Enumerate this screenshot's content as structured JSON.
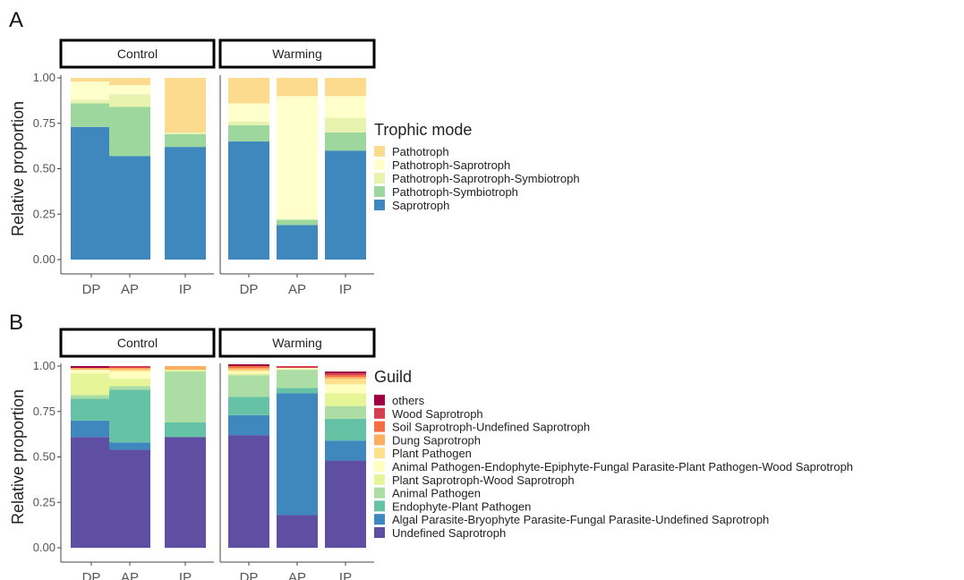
{
  "panels": [
    {
      "letter": "A",
      "facets": [
        "Control",
        "Warming"
      ],
      "legend_title": "Trophic mode",
      "chart_data": {
        "type": "bar",
        "stacked": true,
        "ylabel": "Relative proportion",
        "ylim": [
          0,
          1
        ],
        "yticks": [
          "0.00",
          "0.25",
          "0.50",
          "0.75",
          "1.00"
        ],
        "categories": [
          "DP",
          "AP",
          "IP"
        ],
        "facets": [
          "Control",
          "Warming"
        ],
        "series": [
          {
            "name": "Saprotroph",
            "color": "#3E88BD",
            "values": {
              "Control": [
                0.73,
                0.57,
                0.62
              ],
              "Warming": [
                0.65,
                0.19,
                0.6
              ]
            }
          },
          {
            "name": "Pathotroph-Symbiotroph",
            "color": "#9ED79E",
            "values": {
              "Control": [
                0.13,
                0.27,
                0.07
              ],
              "Warming": [
                0.09,
                0.03,
                0.1
              ]
            }
          },
          {
            "name": "Pathotroph-Saprotroph-Symbiotroph",
            "color": "#E8F3B0",
            "values": {
              "Control": [
                0.02,
                0.07,
                0.01
              ],
              "Warming": [
                0.02,
                0.0,
                0.08
              ]
            }
          },
          {
            "name": "Pathotroph-Saprotroph",
            "color": "#FFFFCB",
            "values": {
              "Control": [
                0.1,
                0.05,
                0.0
              ],
              "Warming": [
                0.1,
                0.68,
                0.12
              ]
            }
          },
          {
            "name": "Pathotroph",
            "color": "#FCDB8E",
            "values": {
              "Control": [
                0.02,
                0.04,
                0.3
              ],
              "Warming": [
                0.14,
                0.1,
                0.1
              ]
            }
          }
        ]
      }
    },
    {
      "letter": "B",
      "facets": [
        "Control",
        "Warming"
      ],
      "legend_title": "Guild",
      "chart_data": {
        "type": "bar",
        "stacked": true,
        "ylabel": "Relative proportion",
        "ylim": [
          0,
          1
        ],
        "yticks": [
          "0.00",
          "0.25",
          "0.50",
          "0.75",
          "1.00"
        ],
        "categories": [
          "DP",
          "AP",
          "IP"
        ],
        "facets": [
          "Control",
          "Warming"
        ],
        "series": [
          {
            "name": "Undefined Saprotroph",
            "color": "#5E4FA2",
            "values": {
              "Control": [
                0.61,
                0.54,
                0.61
              ],
              "Warming": [
                0.62,
                0.18,
                0.48
              ]
            }
          },
          {
            "name": "Algal Parasite-Bryophyte Parasite-Fungal Parasite-Undefined Saprotroph",
            "color": "#3E88BD",
            "values": {
              "Control": [
                0.09,
                0.04,
                0.0
              ],
              "Warming": [
                0.11,
                0.67,
                0.11
              ]
            }
          },
          {
            "name": "Endophyte-Plant Pathogen",
            "color": "#66C2A5",
            "values": {
              "Control": [
                0.12,
                0.29,
                0.08
              ],
              "Warming": [
                0.1,
                0.03,
                0.12
              ]
            }
          },
          {
            "name": "Animal Pathogen",
            "color": "#ABDDA4",
            "values": {
              "Control": [
                0.02,
                0.02,
                0.28
              ],
              "Warming": [
                0.12,
                0.1,
                0.07
              ]
            }
          },
          {
            "name": "Plant Saprotroph-Wood Saprotroph",
            "color": "#E6F598",
            "values": {
              "Control": [
                0.12,
                0.04,
                0.01
              ],
              "Warming": [
                0.01,
                0.0,
                0.07
              ]
            }
          },
          {
            "name": "Animal Pathogen-Endophyte-Epiphyte-Fungal Parasite-Plant Pathogen-Wood Saprotroph",
            "color": "#FFFFBF",
            "values": {
              "Control": [
                0.02,
                0.04,
                0.0
              ],
              "Warming": [
                0.01,
                0.01,
                0.05
              ]
            }
          },
          {
            "name": "Plant Pathogen",
            "color": "#FEE08B",
            "values": {
              "Control": [
                0.0,
                0.01,
                0.0
              ],
              "Warming": [
                0.01,
                0.0,
                0.03
              ]
            }
          },
          {
            "name": "Dung Saprotroph",
            "color": "#FDAE61",
            "values": {
              "Control": [
                0.01,
                0.01,
                0.02
              ],
              "Warming": [
                0.01,
                0.0,
                0.01
              ]
            }
          },
          {
            "name": "Soil Saprotroph-Undefined Saprotroph",
            "color": "#F46D43",
            "values": {
              "Control": [
                0.0,
                0.0,
                0.0
              ],
              "Warming": [
                0.01,
                0.0,
                0.01
              ]
            }
          },
          {
            "name": "Wood Saprotroph",
            "color": "#D53E4F",
            "values": {
              "Control": [
                0.0,
                0.01,
                0.0
              ],
              "Warming": [
                0.0,
                0.01,
                0.01
              ]
            }
          },
          {
            "name": "others",
            "color": "#9E0142",
            "values": {
              "Control": [
                0.01,
                0.0,
                0.0
              ],
              "Warming": [
                0.01,
                0.0,
                0.01
              ]
            }
          }
        ]
      }
    }
  ]
}
